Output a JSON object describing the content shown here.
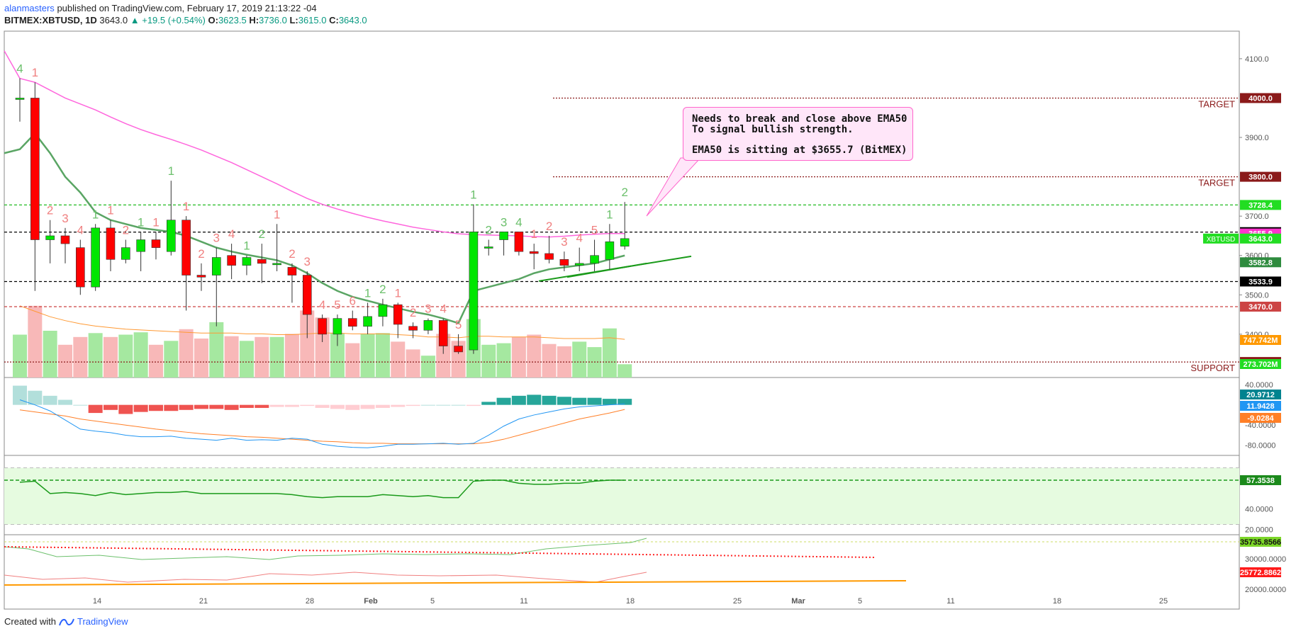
{
  "header": {
    "author": "alanmasters",
    "published": "published on TradingView.com, February 17, 2019 21:13:22 -04",
    "symbol": "BITMEX:XBTUSD, 1D",
    "last": "3643.0",
    "change": "▲ +19.5 (+0.54%)",
    "o_label": "O:",
    "o": "3623.5",
    "h_label": "H:",
    "h": "3736.0",
    "l_label": "L:",
    "l": "3615.0",
    "c_label": "C:",
    "c": "3643.0"
  },
  "footer": {
    "created_with": "Created with",
    "brand": "TradingView"
  },
  "annotation": {
    "line1": "Needs to break and close above EMA50",
    "line2": "To signal bullish strength.",
    "line3": "EMA50 is sitting at $3655.7 (BitMEX)"
  },
  "colors": {
    "up": "#00e600",
    "down": "#ff0000",
    "ema50": "#ff66dd",
    "ema": "#4caf50",
    "vol_up": "#a5e8a0",
    "vol_down": "#f8b8b8",
    "macd": "#2196f3",
    "signal": "#ff7f27"
  },
  "chart_data": [
    {
      "type": "candlestick",
      "x_labels": [
        "14",
        "21",
        "28",
        "Feb",
        "5",
        "11",
        "18",
        "25",
        "Mar",
        "5",
        "11",
        "18",
        "25"
      ],
      "y_ticks": [
        "4100.0",
        "3900.0",
        "3700.0",
        "3600.0",
        "3500.0",
        "3400.0"
      ],
      "ylim": [
        3290,
        4170
      ],
      "candles": [
        {
          "o": 4000,
          "h": 4050,
          "l": 3940,
          "c": 4000
        },
        {
          "o": 4000,
          "h": 4040,
          "l": 3510,
          "c": 3640
        },
        {
          "o": 3640,
          "h": 3690,
          "l": 3580,
          "c": 3650
        },
        {
          "o": 3650,
          "h": 3670,
          "l": 3580,
          "c": 3630
        },
        {
          "o": 3620,
          "h": 3640,
          "l": 3500,
          "c": 3520
        },
        {
          "o": 3520,
          "h": 3680,
          "l": 3510,
          "c": 3670
        },
        {
          "o": 3670,
          "h": 3690,
          "l": 3560,
          "c": 3590
        },
        {
          "o": 3590,
          "h": 3640,
          "l": 3580,
          "c": 3620
        },
        {
          "o": 3610,
          "h": 3660,
          "l": 3560,
          "c": 3640
        },
        {
          "o": 3640,
          "h": 3660,
          "l": 3590,
          "c": 3620
        },
        {
          "o": 3610,
          "h": 3790,
          "l": 3600,
          "c": 3690
        },
        {
          "o": 3690,
          "h": 3700,
          "l": 3460,
          "c": 3550
        },
        {
          "o": 3550,
          "h": 3580,
          "l": 3510,
          "c": 3545
        },
        {
          "o": 3550,
          "h": 3620,
          "l": 3420,
          "c": 3595
        },
        {
          "o": 3600,
          "h": 3630,
          "l": 3540,
          "c": 3575
        },
        {
          "o": 3575,
          "h": 3600,
          "l": 3550,
          "c": 3595
        },
        {
          "o": 3590,
          "h": 3630,
          "l": 3530,
          "c": 3580
        },
        {
          "o": 3580,
          "h": 3680,
          "l": 3560,
          "c": 3580
        },
        {
          "o": 3570,
          "h": 3580,
          "l": 3480,
          "c": 3550
        },
        {
          "o": 3550,
          "h": 3560,
          "l": 3390,
          "c": 3450
        },
        {
          "o": 3440,
          "h": 3450,
          "l": 3380,
          "c": 3400
        },
        {
          "o": 3400,
          "h": 3450,
          "l": 3370,
          "c": 3440
        },
        {
          "o": 3440,
          "h": 3460,
          "l": 3410,
          "c": 3420
        },
        {
          "o": 3420,
          "h": 3480,
          "l": 3400,
          "c": 3445
        },
        {
          "o": 3445,
          "h": 3490,
          "l": 3420,
          "c": 3475
        },
        {
          "o": 3475,
          "h": 3480,
          "l": 3390,
          "c": 3425
        },
        {
          "o": 3420,
          "h": 3430,
          "l": 3390,
          "c": 3410
        },
        {
          "o": 3410,
          "h": 3440,
          "l": 3400,
          "c": 3435
        },
        {
          "o": 3435,
          "h": 3440,
          "l": 3350,
          "c": 3370
        },
        {
          "o": 3370,
          "h": 3400,
          "l": 3350,
          "c": 3355
        },
        {
          "o": 3360,
          "h": 3730,
          "l": 3350,
          "c": 3660
        },
        {
          "o": 3620,
          "h": 3640,
          "l": 3600,
          "c": 3622
        },
        {
          "o": 3640,
          "h": 3660,
          "l": 3600,
          "c": 3660
        },
        {
          "o": 3660,
          "h": 3660,
          "l": 3600,
          "c": 3610
        },
        {
          "o": 3610,
          "h": 3630,
          "l": 3565,
          "c": 3605
        },
        {
          "o": 3605,
          "h": 3650,
          "l": 3580,
          "c": 3590
        },
        {
          "o": 3590,
          "h": 3610,
          "l": 3560,
          "c": 3575
        },
        {
          "o": 3575,
          "h": 3620,
          "l": 3560,
          "c": 3580
        },
        {
          "o": 3580,
          "h": 3640,
          "l": 3560,
          "c": 3600
        },
        {
          "o": 3590,
          "h": 3680,
          "l": 3565,
          "c": 3635
        },
        {
          "o": 3623.5,
          "h": 3736,
          "l": 3615,
          "c": 3643
        }
      ],
      "ema50": [
        4050,
        4040,
        4020,
        4000,
        3985,
        3970,
        3952,
        3935,
        3920,
        3907,
        3895,
        3882,
        3868,
        3852,
        3836,
        3818,
        3800,
        3782,
        3763,
        3745,
        3730,
        3718,
        3707,
        3697,
        3688,
        3680,
        3672,
        3666,
        3660,
        3655,
        3653,
        3652,
        3651,
        3650,
        3648,
        3647,
        3649,
        3652,
        3654,
        3656,
        3655.7
      ],
      "ema_short": [
        3870,
        3910,
        3860,
        3800,
        3760,
        3710,
        3690,
        3680,
        3670,
        3665,
        3660,
        3650,
        3635,
        3620,
        3610,
        3602,
        3595,
        3588,
        3575,
        3555,
        3530,
        3510,
        3495,
        3485,
        3475,
        3466,
        3457,
        3450,
        3440,
        3428,
        3510,
        3520,
        3530,
        3540,
        3555,
        3565,
        3570,
        3575,
        3580,
        3590,
        3600
      ],
      "td_counts": [
        {
          "label": "4",
          "up": true
        },
        {
          "label": "1",
          "up": false
        },
        {
          "label": "2",
          "up": false
        },
        {
          "label": "3",
          "up": false
        },
        {
          "label": "4",
          "up": false
        },
        {
          "label": "1",
          "up": true
        },
        {
          "label": "1",
          "up": false
        },
        {
          "label": "2",
          "up": false
        },
        {
          "label": "1",
          "up": true
        },
        {
          "label": "1",
          "up": false
        },
        {
          "label": "1",
          "up": true
        },
        {
          "label": "1",
          "up": false
        },
        {
          "label": "2",
          "up": false
        },
        {
          "label": "3",
          "up": false
        },
        {
          "label": "4",
          "up": false
        },
        {
          "label": "1",
          "up": true
        },
        {
          "label": "2",
          "up": true
        },
        {
          "label": "1",
          "up": false
        },
        {
          "label": "2",
          "up": false
        },
        {
          "label": "3",
          "up": false
        },
        {
          "label": "4",
          "up": false
        },
        {
          "label": "5",
          "up": false
        },
        {
          "label": "6",
          "up": false
        },
        {
          "label": "1",
          "up": true
        },
        {
          "label": "2",
          "up": true
        },
        {
          "label": "1",
          "up": false
        },
        {
          "label": "2",
          "up": false
        },
        {
          "label": "3",
          "up": false
        },
        {
          "label": "4",
          "up": false
        },
        {
          "label": "5",
          "up": false
        },
        {
          "label": "1",
          "up": true
        },
        {
          "label": "2",
          "up": true
        },
        {
          "label": "3",
          "up": true
        },
        {
          "label": "4",
          "up": true
        },
        {
          "label": "1",
          "up": false
        },
        {
          "label": "2",
          "up": false
        },
        {
          "label": "3",
          "up": false
        },
        {
          "label": "4",
          "up": false
        },
        {
          "label": "5",
          "up": false
        },
        {
          "label": "1",
          "up": true
        },
        {
          "label": "2",
          "up": true
        }
      ],
      "volume": [
        0.55,
        0.92,
        0.6,
        0.42,
        0.52,
        0.57,
        0.52,
        0.55,
        0.58,
        0.42,
        0.47,
        0.62,
        0.5,
        0.71,
        0.53,
        0.47,
        0.52,
        0.52,
        0.56,
        0.86,
        0.77,
        0.57,
        0.44,
        0.56,
        0.57,
        0.46,
        0.36,
        0.28,
        0.56,
        0.47,
        0.75,
        0.42,
        0.44,
        0.52,
        0.55,
        0.43,
        0.4,
        0.46,
        0.39,
        0.63,
        0.17
      ],
      "vol_ma": [
        0.92,
        0.85,
        0.78,
        0.73,
        0.69,
        0.66,
        0.64,
        0.62,
        0.61,
        0.6,
        0.59,
        0.58,
        0.57,
        0.57,
        0.57,
        0.56,
        0.56,
        0.55,
        0.55,
        0.56,
        0.57,
        0.57,
        0.56,
        0.56,
        0.56,
        0.55,
        0.54,
        0.52,
        0.52,
        0.51,
        0.53,
        0.53,
        0.52,
        0.52,
        0.52,
        0.51,
        0.5,
        0.5,
        0.5,
        0.51,
        0.49
      ],
      "levels": [
        {
          "price": 4000,
          "label": "TARGET",
          "tag": "4000.0",
          "color": "#8b1a1a",
          "style": "dotted"
        },
        {
          "price": 3800,
          "label": "TARGET",
          "tag": "3800.0",
          "color": "#8b1a1a",
          "style": "dotted"
        },
        {
          "price": 3728.4,
          "label": "",
          "tag": "3728.4",
          "color": "#22bb22",
          "style": "dashed"
        },
        {
          "price": 3659.4,
          "label": "",
          "tag": "3659.4",
          "color": "#000000",
          "style": "dashed"
        },
        {
          "price": 3533.9,
          "label": "",
          "tag": "3533.9",
          "color": "#000000",
          "style": "dashed"
        },
        {
          "price": 3470.0,
          "label": "",
          "tag": "3470.0",
          "color": "#cc4444",
          "style": "dashed"
        },
        {
          "price": 3329.4,
          "label": "SUPPORT",
          "tag": "3329.4",
          "color": "#8b1a1a",
          "style": "dotted"
        }
      ],
      "tags": [
        {
          "price": 3655.9,
          "text": "3655.9",
          "bg": "#ff33cc"
        },
        {
          "price": 3643.0,
          "text": "3643.0",
          "bg": "#22dd22"
        },
        {
          "price": 3582.8,
          "text": "3582.8",
          "bg": "#2e8b3e"
        }
      ],
      "symbol_tag": "XBTUSD",
      "vol_tags": [
        {
          "text": "747.742M",
          "bg": "#ff9900"
        },
        {
          "text": "273.702M",
          "bg": "#22dd22"
        }
      ]
    },
    {
      "type": "macd",
      "y_ticks": [
        "40.0000",
        "-40.0000",
        "-80.0000"
      ],
      "ylim": [
        -100,
        50
      ],
      "histogram": [
        38,
        28,
        18,
        10,
        0,
        -16,
        -10,
        -18,
        -14,
        -12,
        -12,
        -10,
        -8,
        -8,
        -10,
        -6,
        -6,
        -4,
        -4,
        -2,
        -6,
        -8,
        -10,
        -8,
        -6,
        -4,
        -2,
        0,
        0,
        0,
        -2,
        6,
        14,
        18,
        20,
        18,
        16,
        14,
        14,
        12,
        12
      ],
      "macd": [
        10,
        0,
        -12,
        -30,
        -48,
        -52,
        -55,
        -60,
        -63,
        -63,
        -62,
        -66,
        -68,
        -70,
        -66,
        -70,
        -69,
        -70,
        -66,
        -68,
        -78,
        -82,
        -84,
        -85,
        -82,
        -78,
        -78,
        -77,
        -76,
        -78,
        -76,
        -60,
        -42,
        -28,
        -20,
        -14,
        -8,
        -4,
        -2,
        0,
        2
      ],
      "signal": [
        -10,
        -14,
        -18,
        -22,
        -28,
        -32,
        -36,
        -40,
        -44,
        -48,
        -51,
        -54,
        -57,
        -59,
        -61,
        -63,
        -64,
        -66,
        -68,
        -70,
        -72,
        -73,
        -75,
        -76,
        -76,
        -77,
        -77,
        -77,
        -77,
        -77,
        -77,
        -74,
        -68,
        -60,
        -52,
        -44,
        -36,
        -28,
        -22,
        -16,
        -9
      ],
      "tags": [
        {
          "text": "20.9712",
          "bg": "#00838f"
        },
        {
          "text": "11.9428",
          "bg": "#2196f3"
        },
        {
          "text": "-9.0284",
          "bg": "#ff7f27"
        }
      ]
    },
    {
      "type": "rsi",
      "y_ticks": [
        "40.0000",
        "20.0000"
      ],
      "ylim": [
        15,
        90
      ],
      "values": [
        66,
        67,
        55,
        56,
        55,
        53,
        56,
        54,
        55,
        56,
        56,
        57,
        55,
        55,
        55,
        55,
        55,
        55,
        54,
        52,
        51,
        52,
        52,
        52,
        54,
        53,
        52,
        53,
        51,
        51,
        67,
        68,
        68,
        65,
        64,
        64,
        65,
        65,
        67,
        68,
        68
      ],
      "tags": [
        {
          "text": "57.3538",
          "bg": "#1b8a1b"
        }
      ]
    },
    {
      "type": "lines",
      "y_ticks": [
        "30000.0000",
        "20000.0000"
      ],
      "tags": [
        {
          "text": "35735.8566",
          "bg": "#7cd628"
        },
        {
          "text": "25772.8862",
          "bg": "#ff1a1a"
        }
      ]
    }
  ]
}
